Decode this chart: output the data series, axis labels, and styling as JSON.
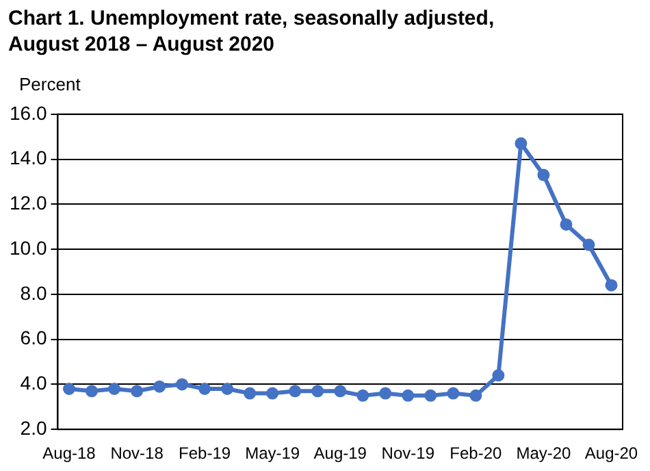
{
  "chart_data": {
    "type": "line",
    "title": "Chart 1. Unemployment rate, seasonally adjusted, August 2018 – August 2020",
    "ylabel": "Percent",
    "categories": [
      "Aug-18",
      null,
      null,
      "Nov-18",
      null,
      null,
      "Feb-19",
      null,
      null,
      "May-19",
      null,
      null,
      "Aug-19",
      null,
      null,
      "Nov-19",
      null,
      null,
      "Feb-20",
      null,
      null,
      "May-20",
      null,
      null,
      "Aug-20"
    ],
    "series": [
      {
        "color": "#4472c4",
        "values": [
          3.8,
          3.7,
          3.8,
          3.7,
          3.9,
          4.0,
          3.8,
          3.8,
          3.6,
          3.6,
          3.7,
          3.7,
          3.7,
          3.5,
          3.6,
          3.5,
          3.5,
          3.6,
          3.5,
          4.4,
          14.7,
          13.3,
          11.1,
          10.2,
          8.4
        ]
      }
    ],
    "ylim": [
      2,
      16
    ],
    "yticks": [
      {
        "value": 2,
        "label": "2.0"
      },
      {
        "value": 4,
        "label": "4.0"
      },
      {
        "value": 6,
        "label": "6.0"
      },
      {
        "value": 8,
        "label": "8.0"
      },
      {
        "value": 10,
        "label": "10.0"
      },
      {
        "value": 12,
        "label": "12.0"
      },
      {
        "value": 14,
        "label": "14.0"
      },
      {
        "value": 16,
        "label": "16.0"
      }
    ],
    "grid": "y",
    "legend": false,
    "marker": "circle",
    "line_style": "solid"
  }
}
